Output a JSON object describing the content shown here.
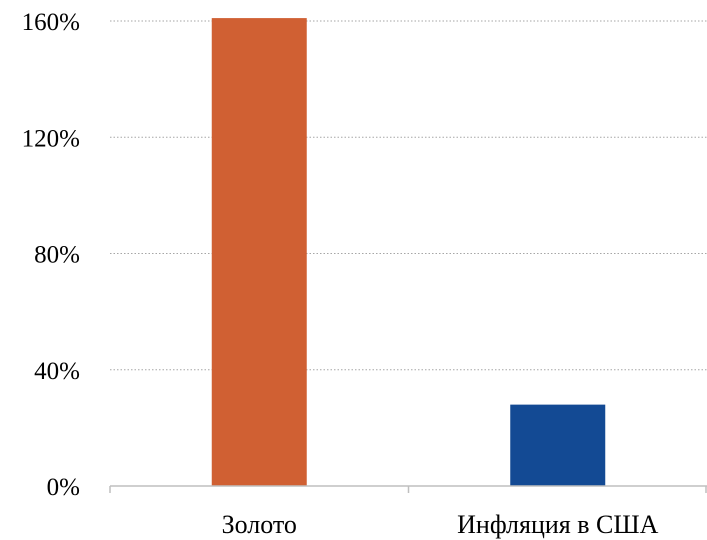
{
  "chart_data": {
    "type": "bar",
    "categories": [
      "Золото",
      "Инфляция в США"
    ],
    "values": [
      161,
      28
    ],
    "bar_colors": [
      "#D06033",
      "#134A94"
    ],
    "y_ticks": [
      0,
      40,
      80,
      120,
      160
    ],
    "y_tick_labels": [
      "0%",
      "40%",
      "80%",
      "120%",
      "160%"
    ],
    "ylim": [
      0,
      160
    ],
    "title": "",
    "xlabel": "",
    "ylabel": "",
    "grid": true,
    "grid_style": "dotted",
    "grid_color": "#a6a6a6",
    "axis_color": "#bfbfbf",
    "legend": "none"
  }
}
